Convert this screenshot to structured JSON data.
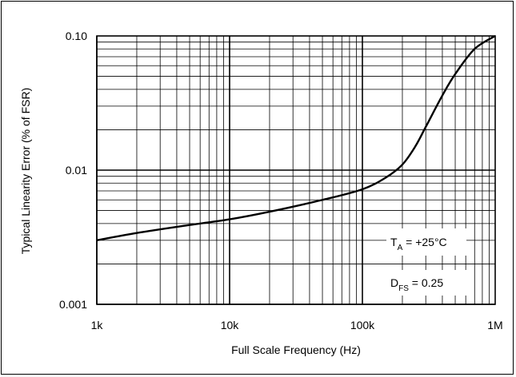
{
  "chart_data": {
    "type": "line",
    "title": "",
    "xlabel": "Full Scale Frequency (Hz)",
    "ylabel": "Typical Linearity Error (% of FSR)",
    "xscale": "log",
    "yscale": "log",
    "xlim": [
      1000,
      1000000
    ],
    "ylim": [
      0.001,
      0.1
    ],
    "grid": true,
    "x_tick_labels": [
      "1k",
      "10k",
      "100k",
      "1M"
    ],
    "y_tick_labels": [
      "0.001",
      "0.01",
      "0.10"
    ],
    "annotations": {
      "ta_main": "T",
      "ta_sub": "A",
      "ta_value": " = +25°C",
      "dfs_main": "D",
      "dfs_sub": "FS",
      "dfs_value": " = 0.25"
    },
    "series": [
      {
        "x": [
          1000,
          2000,
          5000,
          10000,
          20000,
          50000,
          100000,
          150000,
          200000,
          250000,
          300000,
          400000,
          500000,
          700000,
          1000000
        ],
        "y": [
          0.003,
          0.0034,
          0.0039,
          0.0043,
          0.0049,
          0.006,
          0.0072,
          0.0088,
          0.011,
          0.015,
          0.021,
          0.036,
          0.052,
          0.08,
          0.1
        ]
      }
    ]
  }
}
